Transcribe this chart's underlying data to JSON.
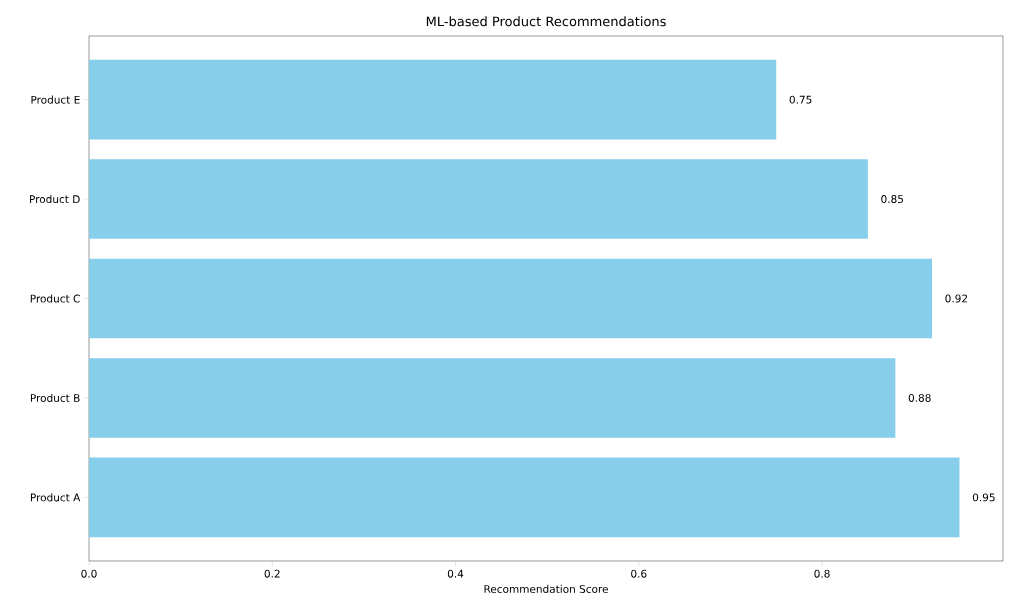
{
  "chart_data": {
    "type": "bar",
    "orientation": "horizontal",
    "title": "ML-based Product Recommendations",
    "xlabel": "Recommendation Score",
    "categories": [
      "Product E",
      "Product D",
      "Product C",
      "Product B",
      "Product A"
    ],
    "values": [
      0.75,
      0.85,
      0.92,
      0.88,
      0.95
    ],
    "color": "#87ceeb",
    "xlim": [
      0,
      0.9975
    ],
    "xticks": [
      {
        "value": 0,
        "label": "0.0"
      },
      {
        "value": 0.2,
        "label": "0.2"
      },
      {
        "value": 0.4,
        "label": "0.4"
      },
      {
        "value": 0.6,
        "label": "0.6"
      },
      {
        "value": 0.8,
        "label": "0.8"
      }
    ],
    "data_labels": true,
    "grid": false
  }
}
